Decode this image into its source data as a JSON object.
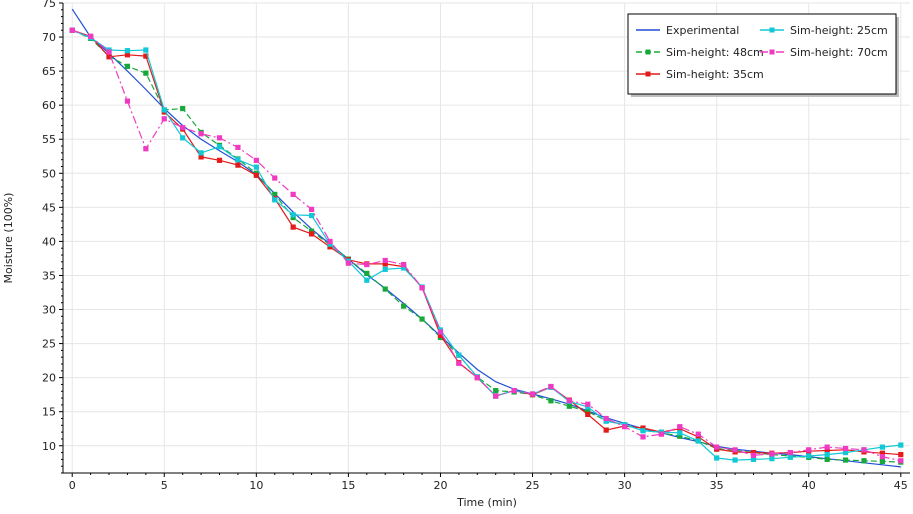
{
  "chart_data": {
    "type": "line",
    "title": "",
    "xlabel": "Time (min)",
    "ylabel": "Moisture (100%)",
    "xlim": [
      -0.5,
      45.5
    ],
    "ylim": [
      6,
      75
    ],
    "xticks": [
      0,
      5,
      10,
      15,
      20,
      25,
      30,
      35,
      40,
      45
    ],
    "yticks": [
      10,
      15,
      20,
      25,
      30,
      35,
      40,
      45,
      50,
      55,
      60,
      65,
      70,
      75
    ],
    "grid": true,
    "legend_position": "top-right",
    "series": [
      {
        "name": "Experimental",
        "color": "#1f4fd6",
        "marker": "none",
        "dash": "solid",
        "x": [
          0,
          1,
          2,
          3,
          4,
          5,
          6,
          7,
          8,
          9,
          10,
          11,
          12,
          13,
          14,
          15,
          16,
          17,
          18,
          19,
          20,
          21,
          22,
          23,
          24,
          25,
          26,
          27,
          28,
          29,
          30,
          31,
          32,
          33,
          34,
          35,
          36,
          37,
          38,
          39,
          40,
          41,
          42,
          43,
          44,
          45
        ],
        "values": [
          74.1,
          70.0,
          67.6,
          65.0,
          62.3,
          59.5,
          57.0,
          55.0,
          53.3,
          51.7,
          49.8,
          47.0,
          44.3,
          41.8,
          39.6,
          37.4,
          35.1,
          33.1,
          30.9,
          28.6,
          26.1,
          23.6,
          21.2,
          19.4,
          18.3,
          17.6,
          16.9,
          16.1,
          15.1,
          14.1,
          13.3,
          12.5,
          11.9,
          11.2,
          10.6,
          9.9,
          9.5,
          9.2,
          8.9,
          8.7,
          8.4,
          8.1,
          7.8,
          7.5,
          7.2,
          6.9
        ]
      },
      {
        "name": "Sim-height: 48cm",
        "color": "#17a83a",
        "marker": "square",
        "dash": "dash",
        "x": [
          0,
          1,
          2,
          3,
          4,
          5,
          6,
          7,
          8,
          9,
          10,
          11,
          12,
          13,
          14,
          15,
          16,
          17,
          18,
          19,
          20,
          21,
          22,
          23,
          24,
          25,
          26,
          27,
          28,
          29,
          30,
          31,
          32,
          33,
          34,
          35,
          36,
          37,
          38,
          39,
          40,
          41,
          42,
          43,
          44,
          45
        ],
        "values": [
          71.0,
          69.8,
          67.2,
          65.7,
          64.7,
          59.3,
          59.5,
          56.0,
          54.1,
          52.1,
          50.0,
          46.9,
          43.5,
          41.5,
          39.5,
          37.4,
          35.3,
          33.0,
          30.5,
          28.6,
          25.9,
          23.3,
          20.1,
          18.1,
          17.9,
          17.5,
          16.6,
          15.8,
          15.0,
          13.7,
          13.1,
          12.3,
          11.9,
          11.4,
          10.7,
          9.6,
          9.3,
          9.0,
          8.7,
          8.5,
          8.3,
          8.0,
          7.9,
          7.8,
          7.7,
          7.6
        ]
      },
      {
        "name": "Sim-height: 35cm",
        "color": "#e21b1b",
        "marker": "square",
        "dash": "solid",
        "x": [
          0,
          1,
          2,
          3,
          4,
          5,
          6,
          7,
          8,
          9,
          10,
          11,
          12,
          13,
          14,
          15,
          16,
          17,
          18,
          19,
          20,
          21,
          22,
          23,
          24,
          25,
          26,
          27,
          28,
          29,
          30,
          31,
          32,
          33,
          34,
          35,
          36,
          37,
          38,
          39,
          40,
          41,
          42,
          43,
          44,
          45
        ],
        "values": [
          71.0,
          70.1,
          67.1,
          67.4,
          67.2,
          59.0,
          56.5,
          52.4,
          51.9,
          51.2,
          49.7,
          46.3,
          42.1,
          41.1,
          39.2,
          37.3,
          36.7,
          36.7,
          36.3,
          33.2,
          26.2,
          22.2,
          20.0,
          17.3,
          18.1,
          17.5,
          18.6,
          16.7,
          14.6,
          12.3,
          12.9,
          12.6,
          12.0,
          12.5,
          11.3,
          9.5,
          9.1,
          9.0,
          8.9,
          9.0,
          9.2,
          9.3,
          9.4,
          9.1,
          8.9,
          8.7
        ]
      },
      {
        "name": "Sim-height: 25cm",
        "color": "#12c8d6",
        "marker": "square",
        "dash": "solid",
        "x": [
          0,
          1,
          2,
          3,
          4,
          5,
          6,
          7,
          8,
          9,
          10,
          11,
          12,
          13,
          14,
          15,
          16,
          17,
          18,
          19,
          20,
          21,
          22,
          23,
          24,
          25,
          26,
          27,
          28,
          29,
          30,
          31,
          32,
          33,
          34,
          35,
          36,
          37,
          38,
          39,
          40,
          41,
          42,
          43,
          44,
          45
        ],
        "values": [
          71.0,
          69.9,
          68.1,
          68.0,
          68.1,
          59.3,
          55.2,
          53.0,
          53.9,
          52.0,
          50.9,
          46.1,
          43.9,
          43.8,
          39.6,
          37.1,
          34.3,
          35.9,
          36.1,
          33.3,
          27.0,
          23.3,
          20.1,
          17.3,
          18.1,
          17.6,
          18.6,
          16.5,
          15.7,
          13.6,
          13.1,
          12.2,
          12.0,
          11.9,
          10.7,
          8.2,
          7.9,
          8.0,
          8.1,
          8.3,
          8.5,
          8.7,
          9.0,
          9.4,
          9.8,
          10.1
        ]
      },
      {
        "name": "Sim-height: 70cm",
        "color": "#f03ac3",
        "marker": "square",
        "dash": "dashdot",
        "x": [
          0,
          1,
          2,
          3,
          4,
          5,
          6,
          7,
          8,
          9,
          10,
          11,
          12,
          13,
          14,
          15,
          16,
          17,
          18,
          19,
          20,
          21,
          22,
          23,
          24,
          25,
          26,
          27,
          28,
          29,
          30,
          31,
          32,
          33,
          34,
          35,
          36,
          37,
          38,
          39,
          40,
          41,
          42,
          43,
          44,
          45
        ],
        "values": [
          71.0,
          70.1,
          67.8,
          60.6,
          53.6,
          58.0,
          56.7,
          55.8,
          55.2,
          53.8,
          51.9,
          49.3,
          46.9,
          44.7,
          40.0,
          36.8,
          36.6,
          37.2,
          36.6,
          33.2,
          26.7,
          22.1,
          20.0,
          17.3,
          18.1,
          17.6,
          18.7,
          16.6,
          16.1,
          14.0,
          12.8,
          11.3,
          11.7,
          12.8,
          11.7,
          9.8,
          9.4,
          8.6,
          8.8,
          9.0,
          9.4,
          9.8,
          9.6,
          9.4,
          8.4,
          7.8
        ]
      }
    ]
  }
}
